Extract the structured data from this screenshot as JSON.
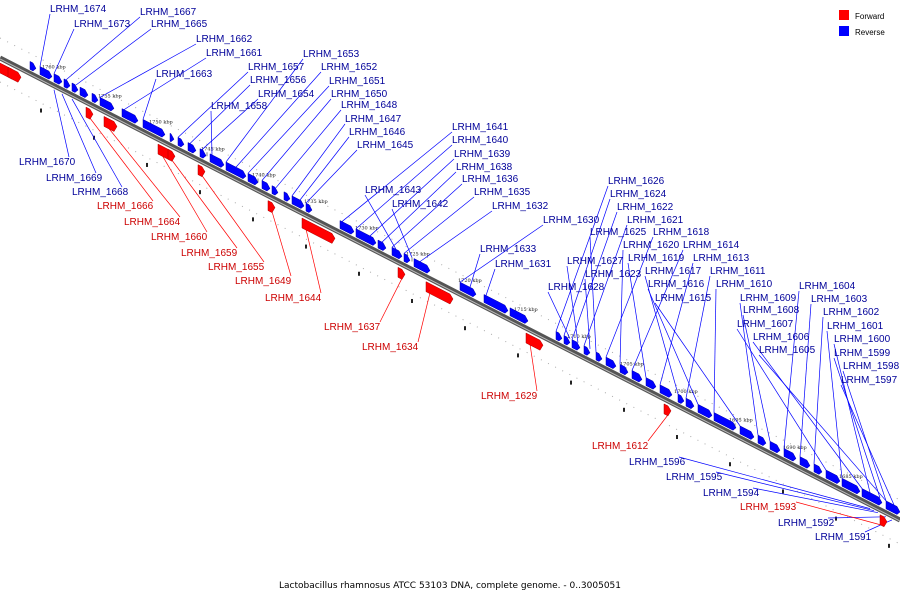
{
  "colors": {
    "forward": "#ff0000",
    "reverse": "#0000ff",
    "forward_label": "#cc0000",
    "reverse_label": "#000099",
    "backbone": "#666666"
  },
  "legend": {
    "forward": "Forward",
    "reverse": "Reverse"
  },
  "caption": "Lactobacillus rhamnosus ATCC 53103 DNA, complete genome. - 0..3005051",
  "ticks": [
    "1760 kbp",
    "1755 kbp",
    "1750 kbp",
    "1745 kbp",
    "1740 kbp",
    "1735 kbp",
    "1730 kbp",
    "1725 kbp",
    "1720 kbp",
    "1715 kbp",
    "1710 kbp",
    "1705 kbp",
    "1700 kbp",
    "1695 kbp",
    "1690 kbp",
    "1685 kbp"
  ],
  "genes_top": [
    "LRHM_1674",
    "LRHM_1673",
    "LRHM_1667",
    "LRHM_1665",
    "LRHM_1662",
    "LRHM_1661",
    "LRHM_1663",
    "LRHM_1657",
    "LRHM_1656",
    "LRHM_1654",
    "LRHM_1658",
    "LRHM_1653",
    "LRHM_1652",
    "LRHM_1651",
    "LRHM_1650",
    "LRHM_1648",
    "LRHM_1647",
    "LRHM_1646",
    "LRHM_1645",
    "LRHM_1641",
    "LRHM_1640",
    "LRHM_1639",
    "LRHM_1638",
    "LRHM_1636",
    "LRHM_1643",
    "LRHM_1635",
    "LRHM_1642",
    "LRHM_1632",
    "LRHM_1630",
    "LRHM_1633",
    "LRHM_1631",
    "LRHM_1626",
    "LRHM_1624",
    "LRHM_1622",
    "LRHM_1621",
    "LRHM_1625",
    "LRHM_1618",
    "LRHM_1620",
    "LRHM_1614",
    "LRHM_1619",
    "LRHM_1613",
    "LRHM_1627",
    "LRHM_1623",
    "LRHM_1617",
    "LRHM_1611",
    "LRHM_1628",
    "LRHM_1616",
    "LRHM_1610",
    "LRHM_1615",
    "LRHM_1609",
    "LRHM_1608",
    "LRHM_1604",
    "LRHM_1603",
    "LRHM_1602",
    "LRHM_1607",
    "LRHM_1601",
    "LRHM_1606",
    "LRHM_1600",
    "LRHM_1605",
    "LRHM_1599",
    "LRHM_1598",
    "LRHM_1597"
  ],
  "genes_bottom_reverse": [
    "LRHM_1670",
    "LRHM_1669",
    "LRHM_1668",
    "LRHM_1596",
    "LRHM_1595",
    "LRHM_1594",
    "LRHM_1592",
    "LRHM_1591"
  ],
  "genes_bottom_forward": [
    "LRHM_1666",
    "LRHM_1664",
    "LRHM_1660",
    "LRHM_1659",
    "LRHM_1655",
    "LRHM_1649",
    "LRHM_1644",
    "LRHM_1637",
    "LRHM_1634",
    "LRHM_1629",
    "LRHM_1612",
    "LRHM_1593"
  ]
}
